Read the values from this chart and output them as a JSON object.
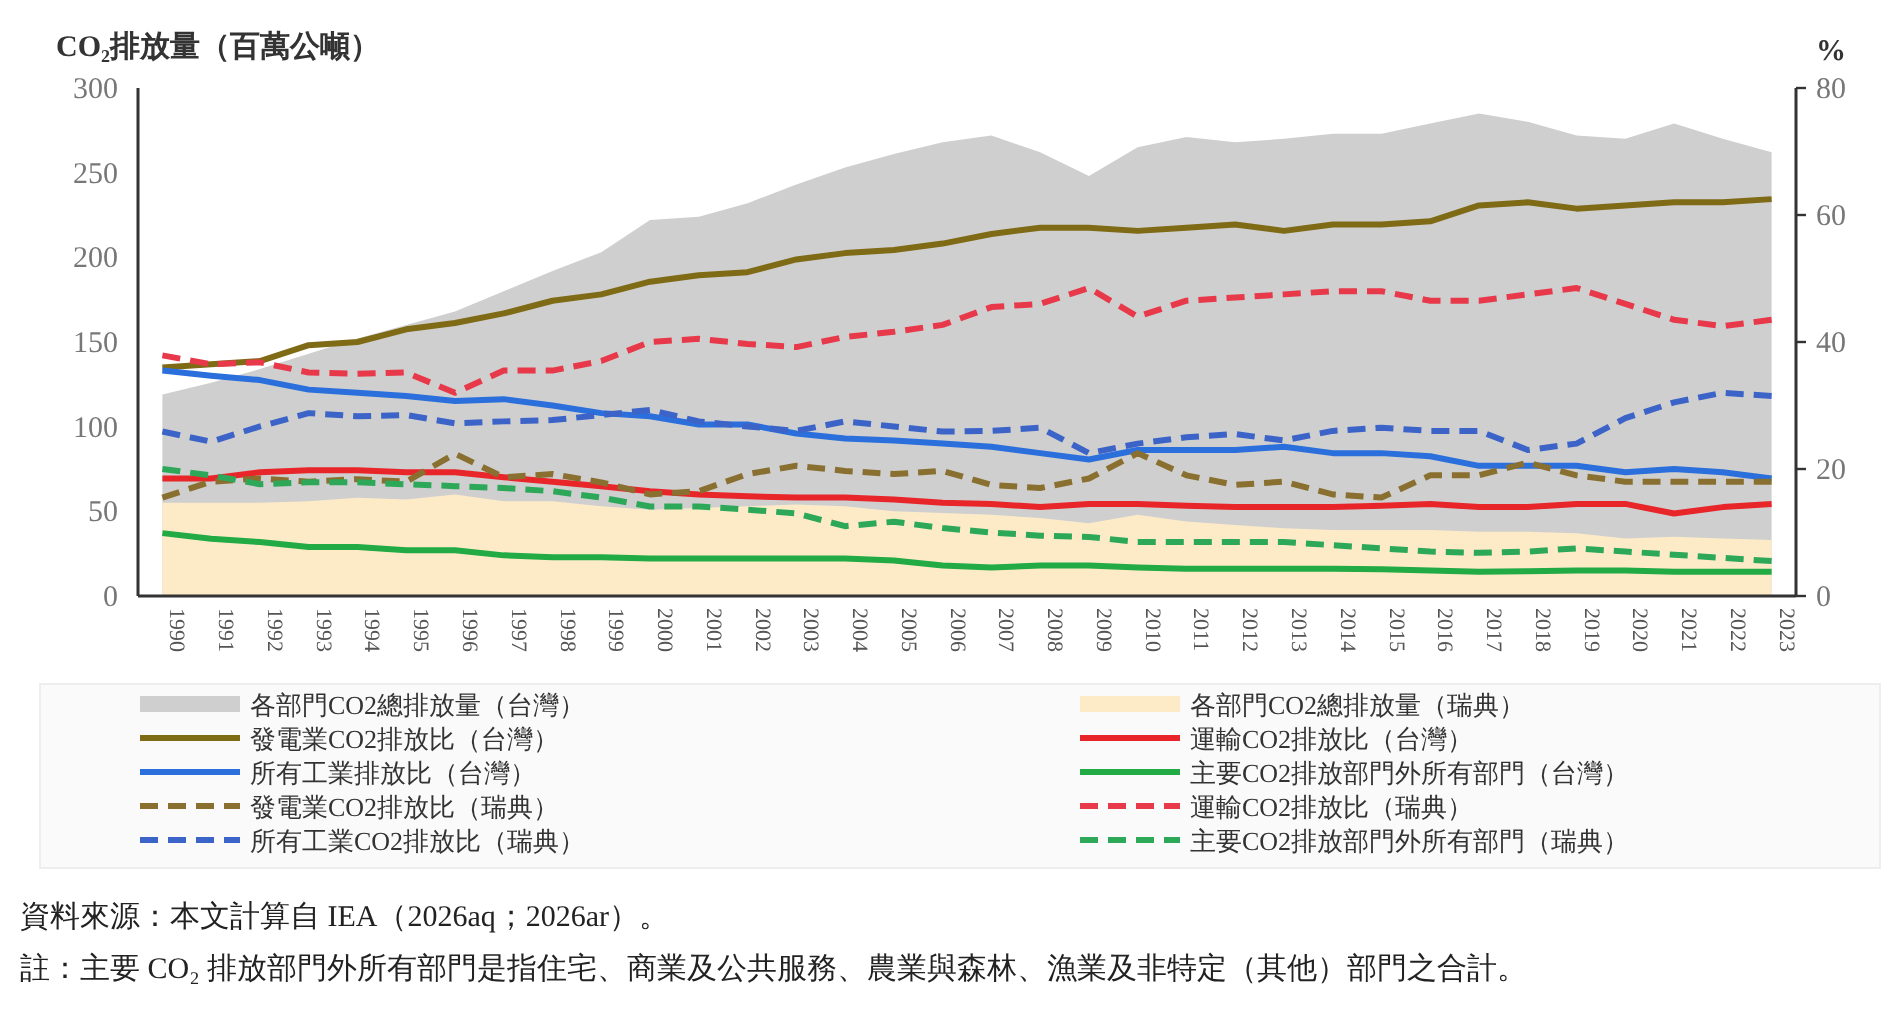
{
  "chart_data": {
    "type": "line",
    "ylabel": "CO₂排放量（百萬公噸）",
    "y2label": "%",
    "categories": [
      "1990",
      "1991",
      "1992",
      "1993",
      "1994",
      "1995",
      "1996",
      "1997",
      "1998",
      "1999",
      "2000",
      "2001",
      "2002",
      "2003",
      "2004",
      "2005",
      "2006",
      "2007",
      "2008",
      "2009",
      "2010",
      "2011",
      "2012",
      "2013",
      "2014",
      "2015",
      "2016",
      "2017",
      "2018",
      "2019",
      "2020",
      "2021",
      "2022",
      "2023"
    ],
    "ylim": [
      0,
      300
    ],
    "yticks": [
      0,
      50,
      100,
      150,
      200,
      250,
      300
    ],
    "y2lim": [
      0,
      80
    ],
    "y2ticks": [
      0,
      20,
      40,
      60,
      80
    ],
    "legend": "bottom",
    "series": [
      {
        "name": "各部門CO2總排放量（台灣）",
        "type": "area",
        "color": "#cfcfcf",
        "values": [
          119,
          126,
          134,
          143,
          152,
          160,
          168,
          180,
          192,
          203,
          222,
          224,
          232,
          243,
          253,
          261,
          268,
          272,
          262,
          248,
          265,
          271,
          268,
          270,
          273,
          273,
          279,
          285,
          280,
          272,
          270,
          279,
          270,
          262
        ]
      },
      {
        "name": "各部門CO2總排放量（瑞典）",
        "type": "area",
        "color": "#fdebc8",
        "values": [
          55,
          55,
          55,
          56,
          58,
          57,
          60,
          56,
          56,
          53,
          51,
          52,
          53,
          54,
          53,
          50,
          49,
          48,
          46,
          43,
          48,
          44,
          42,
          40,
          39,
          39,
          39,
          38,
          38,
          37,
          34,
          35,
          34,
          33
        ]
      },
      {
        "name": "發電業CO2排放比（台灣）",
        "type": "line",
        "axis": "y2",
        "color": "#7f6a16",
        "line_style": "solid",
        "values": [
          36,
          36.5,
          37,
          39.5,
          40,
          42,
          43,
          44.5,
          46.5,
          47.5,
          49.5,
          50.5,
          51,
          53,
          54,
          54.5,
          55.5,
          57,
          58,
          58,
          57.5,
          58,
          58.5,
          57.5,
          58.5,
          58.5,
          59,
          61.5,
          62,
          61,
          61.5,
          62,
          62,
          62.5
        ]
      },
      {
        "name": "運輸CO2排放比（台灣）",
        "type": "line",
        "axis": "y2",
        "color": "#e8262a",
        "line_style": "solid",
        "values": [
          18.5,
          18.5,
          19.5,
          19.8,
          19.8,
          19.5,
          19.5,
          18.7,
          18,
          17.3,
          16.5,
          16,
          15.7,
          15.5,
          15.5,
          15.2,
          14.7,
          14.5,
          14,
          14.5,
          14.5,
          14.2,
          14,
          14,
          14,
          14.2,
          14.5,
          14,
          14,
          14.5,
          14.5,
          13,
          14,
          14.5
        ]
      },
      {
        "name": "所有工業排放比（台灣）",
        "type": "line",
        "axis": "y2",
        "color": "#2a6fdb",
        "line_style": "solid",
        "values": [
          35.5,
          34.7,
          34,
          32.5,
          32,
          31.5,
          30.7,
          31,
          30,
          28.8,
          28.3,
          27,
          27,
          25.6,
          24.8,
          24.5,
          24,
          23.5,
          22.5,
          21.5,
          23,
          23,
          23,
          23.5,
          22.5,
          22.5,
          22,
          20.5,
          20.5,
          20.5,
          19.5,
          20,
          19.5,
          18.5
        ]
      },
      {
        "name": "主要CO2排放部門外所有部門（台灣）",
        "type": "line",
        "axis": "y2",
        "color": "#22aa44",
        "line_style": "solid",
        "values": [
          9.9,
          9,
          8.5,
          7.7,
          7.7,
          7.2,
          7.2,
          6.4,
          6.1,
          6.1,
          5.9,
          5.9,
          5.9,
          5.9,
          5.9,
          5.6,
          4.8,
          4.5,
          4.8,
          4.8,
          4.5,
          4.3,
          4.3,
          4.3,
          4.3,
          4.2,
          4,
          3.8,
          3.9,
          4,
          4,
          3.8,
          3.8,
          3.8
        ]
      },
      {
        "name": "發電業CO2排放比（瑞典）",
        "type": "line",
        "axis": "y2",
        "color": "#8a7030",
        "line_style": "dashed",
        "values": [
          15.5,
          18,
          18.5,
          18,
          18.4,
          18,
          22.4,
          18.7,
          19.2,
          17.9,
          16,
          16.5,
          19.2,
          20.5,
          19.7,
          19.2,
          19.7,
          17.5,
          17,
          18.5,
          22.5,
          19,
          17.5,
          18,
          16,
          15.5,
          19,
          19,
          21,
          19,
          18,
          18,
          18,
          18
        ]
      },
      {
        "name": "運輸CO2排放比（瑞典）",
        "type": "line",
        "axis": "y2",
        "color": "#e8394a",
        "line_style": "dashed",
        "values": [
          37.9,
          36.5,
          36.8,
          35.2,
          35,
          35.2,
          32,
          35.5,
          35.5,
          37,
          40,
          40.5,
          39.7,
          39.2,
          40.8,
          41.6,
          42.7,
          45.5,
          46,
          48.5,
          44,
          46.5,
          47,
          47.5,
          48,
          48,
          46.5,
          46.5,
          47.5,
          48.5,
          46,
          43.5,
          42.5,
          43.5
        ]
      },
      {
        "name": "所有工業CO2排放比（瑞典）",
        "type": "line",
        "axis": "y2",
        "color": "#3c64c8",
        "line_style": "dashed",
        "values": [
          25.9,
          24.3,
          26.7,
          28.8,
          28.3,
          28.5,
          27.2,
          27.5,
          27.7,
          28.5,
          29.3,
          27.5,
          26.7,
          26,
          27.5,
          26.7,
          25.9,
          26,
          26.5,
          22.5,
          24,
          25,
          25.5,
          24.5,
          26,
          26.5,
          26,
          26,
          23,
          24,
          28,
          30.5,
          32,
          31.5
        ]
      },
      {
        "name": "主要CO2排放部門外所有部門（瑞典）",
        "type": "line",
        "axis": "y2",
        "color": "#2ca858",
        "line_style": "dashed",
        "values": [
          20,
          19,
          17.6,
          17.9,
          17.9,
          17.6,
          17.3,
          17,
          16.5,
          15.5,
          14.1,
          14.1,
          13.6,
          13,
          11,
          11.7,
          10.7,
          10,
          9.5,
          9.3,
          8.5,
          8.5,
          8.5,
          8.5,
          8,
          7.5,
          7,
          6.8,
          7,
          7.5,
          7,
          6.5,
          6,
          5.5
        ]
      }
    ],
    "annotations": [
      "資料來源：本文計算自 IEA（2026aq；2026ar）。",
      "註：主要 CO₂ 排放部門外所有部門是指住宅、商業及公共服務、農業與森林、漁業及非特定（其他）部門之合計。"
    ]
  }
}
